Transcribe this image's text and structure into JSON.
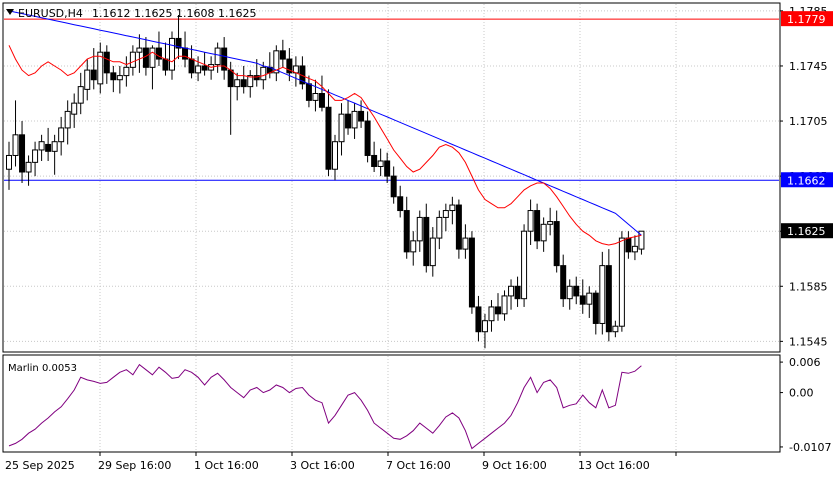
{
  "header": {
    "symbol": "EURUSD,H4",
    "ohlc": "1.1612 1.1625 1.1608 1.1625"
  },
  "chart_data": [
    {
      "type": "candlestick",
      "ylim": [
        1.1538,
        1.179
      ],
      "y_ticks": [
        "1.1785",
        "1.1745",
        "1.1705",
        "1.1665",
        "1.1625",
        "1.1585",
        "1.1545"
      ],
      "x_labels": [
        "25 Sep 2025",
        "29 Sep 16:00",
        "1 Oct 16:00",
        "3 Oct 16:00",
        "7 Oct 16:00",
        "9 Oct 16:00",
        "13 Oct 16:00"
      ],
      "hlines": [
        {
          "value": 1.1779,
          "label": "1.1779",
          "color": "#ff0000"
        },
        {
          "value": 1.1662,
          "label": "1.1662",
          "color": "#0000ff"
        },
        {
          "value": 1.1625,
          "label": "1.1625",
          "color": "#000000"
        }
      ],
      "candles": [
        [
          1.167,
          1.169,
          1.1655,
          1.168
        ],
        [
          1.168,
          1.172,
          1.1672,
          1.1695
        ],
        [
          1.1695,
          1.1705,
          1.166,
          1.1668
        ],
        [
          1.1668,
          1.168,
          1.1658,
          1.1675
        ],
        [
          1.1675,
          1.169,
          1.1665,
          1.1684
        ],
        [
          1.1684,
          1.1695,
          1.1676,
          1.169
        ],
        [
          1.1688,
          1.17,
          1.1676,
          1.1683
        ],
        [
          1.1683,
          1.1695,
          1.1666,
          1.169
        ],
        [
          1.169,
          1.1708,
          1.168,
          1.17
        ],
        [
          1.17,
          1.172,
          1.1688,
          1.1712
        ],
        [
          1.171,
          1.1725,
          1.17,
          1.1718
        ],
        [
          1.1718,
          1.174,
          1.171,
          1.173
        ],
        [
          1.1728,
          1.175,
          1.172,
          1.1742
        ],
        [
          1.1742,
          1.1758,
          1.1728,
          1.1735
        ],
        [
          1.1732,
          1.1762,
          1.1725,
          1.1755
        ],
        [
          1.1755,
          1.176,
          1.1732,
          1.174
        ],
        [
          1.174,
          1.1745,
          1.1726,
          1.1735
        ],
        [
          1.1735,
          1.1745,
          1.1725,
          1.1738
        ],
        [
          1.1738,
          1.1752,
          1.173,
          1.1744
        ],
        [
          1.1744,
          1.176,
          1.1738,
          1.1755
        ],
        [
          1.1755,
          1.1768,
          1.174,
          1.1758
        ],
        [
          1.1758,
          1.1766,
          1.1738,
          1.1744
        ],
        [
          1.1744,
          1.176,
          1.1728,
          1.1758
        ],
        [
          1.1758,
          1.177,
          1.1745,
          1.175
        ],
        [
          1.175,
          1.1762,
          1.1738,
          1.1742
        ],
        [
          1.1742,
          1.177,
          1.1735,
          1.1765
        ],
        [
          1.1765,
          1.1782,
          1.175,
          1.1758
        ],
        [
          1.1758,
          1.177,
          1.1744,
          1.175
        ],
        [
          1.175,
          1.176,
          1.1736,
          1.174
        ],
        [
          1.174,
          1.1752,
          1.1734,
          1.1745
        ],
        [
          1.1745,
          1.1755,
          1.1738,
          1.1742
        ],
        [
          1.1742,
          1.1752,
          1.1735,
          1.1746
        ],
        [
          1.1746,
          1.1762,
          1.174,
          1.1758
        ],
        [
          1.1758,
          1.1766,
          1.1735,
          1.1742
        ],
        [
          1.1742,
          1.1748,
          1.1695,
          1.173
        ],
        [
          1.173,
          1.174,
          1.172,
          1.1735
        ],
        [
          1.1735,
          1.1745,
          1.1725,
          1.173
        ],
        [
          1.173,
          1.1742,
          1.1722,
          1.1738
        ],
        [
          1.1738,
          1.175,
          1.173,
          1.1735
        ],
        [
          1.1735,
          1.1748,
          1.1728,
          1.1744
        ],
        [
          1.1744,
          1.1755,
          1.1736,
          1.174
        ],
        [
          1.174,
          1.176,
          1.1734,
          1.1756
        ],
        [
          1.1756,
          1.1764,
          1.1744,
          1.175
        ],
        [
          1.175,
          1.1758,
          1.1734,
          1.174
        ],
        [
          1.174,
          1.1752,
          1.173,
          1.1745
        ],
        [
          1.1745,
          1.1752,
          1.1728,
          1.1732
        ],
        [
          1.1732,
          1.1738,
          1.1715,
          1.172
        ],
        [
          1.172,
          1.1735,
          1.1712,
          1.1725
        ],
        [
          1.1725,
          1.1738,
          1.1712,
          1.1715
        ],
        [
          1.1715,
          1.1728,
          1.1665,
          1.167
        ],
        [
          1.167,
          1.1695,
          1.1662,
          1.169
        ],
        [
          1.169,
          1.1718,
          1.168,
          1.171
        ],
        [
          1.171,
          1.172,
          1.1695,
          1.17
        ],
        [
          1.17,
          1.1718,
          1.1692,
          1.1712
        ],
        [
          1.1712,
          1.172,
          1.17,
          1.1705
        ],
        [
          1.1705,
          1.1712,
          1.1675,
          1.168
        ],
        [
          1.168,
          1.169,
          1.1668,
          1.1672
        ],
        [
          1.1672,
          1.1685,
          1.1665,
          1.1676
        ],
        [
          1.1676,
          1.1682,
          1.166,
          1.1665
        ],
        [
          1.1665,
          1.1672,
          1.1645,
          1.165
        ],
        [
          1.165,
          1.1658,
          1.1635,
          1.164
        ],
        [
          1.164,
          1.165,
          1.1605,
          1.161
        ],
        [
          1.161,
          1.1625,
          1.16,
          1.1618
        ],
        [
          1.1618,
          1.164,
          1.161,
          1.1635
        ],
        [
          1.1635,
          1.1645,
          1.1595,
          1.16
        ],
        [
          1.16,
          1.1628,
          1.1592,
          1.162
        ],
        [
          1.162,
          1.164,
          1.1612,
          1.1635
        ],
        [
          1.1635,
          1.1645,
          1.1625,
          1.164
        ],
        [
          1.164,
          1.165,
          1.163,
          1.1644
        ],
        [
          1.1644,
          1.1648,
          1.1605,
          1.1612
        ],
        [
          1.1612,
          1.163,
          1.1605,
          1.162
        ],
        [
          1.162,
          1.1625,
          1.1565,
          1.157
        ],
        [
          1.157,
          1.1578,
          1.1545,
          1.1552
        ],
        [
          1.1552,
          1.1565,
          1.154,
          1.156
        ],
        [
          1.156,
          1.1575,
          1.1552,
          1.157
        ],
        [
          1.157,
          1.158,
          1.156,
          1.1565
        ],
        [
          1.1565,
          1.1582,
          1.156,
          1.1578
        ],
        [
          1.1578,
          1.159,
          1.1568,
          1.1585
        ],
        [
          1.1585,
          1.1592,
          1.157,
          1.1576
        ],
        [
          1.1576,
          1.163,
          1.157,
          1.1625
        ],
        [
          1.1625,
          1.1648,
          1.1615,
          1.164
        ],
        [
          1.164,
          1.1645,
          1.1612,
          1.1618
        ],
        [
          1.1618,
          1.1635,
          1.161,
          1.163
        ],
        [
          1.163,
          1.1642,
          1.1622,
          1.1632
        ],
        [
          1.1632,
          1.164,
          1.1595,
          1.16
        ],
        [
          1.16,
          1.1608,
          1.157,
          1.1576
        ],
        [
          1.1576,
          1.159,
          1.1568,
          1.1585
        ],
        [
          1.1585,
          1.1592,
          1.1572,
          1.1578
        ],
        [
          1.1578,
          1.159,
          1.1565,
          1.1572
        ],
        [
          1.1572,
          1.1585,
          1.1562,
          1.158
        ],
        [
          1.158,
          1.1582,
          1.155,
          1.1558
        ],
        [
          1.1558,
          1.161,
          1.155,
          1.16
        ],
        [
          1.16,
          1.1612,
          1.1545,
          1.1552
        ],
        [
          1.1552,
          1.156,
          1.1548,
          1.1556
        ],
        [
          1.1556,
          1.1625,
          1.1552,
          1.162
        ],
        [
          1.162,
          1.1625,
          1.1605,
          1.161
        ],
        [
          1.161,
          1.1622,
          1.1604,
          1.1614
        ],
        [
          1.1612,
          1.1625,
          1.1608,
          1.1625
        ]
      ],
      "ma_fast": [
        1.176,
        1.175,
        1.1742,
        1.1738,
        1.174,
        1.1745,
        1.1748,
        1.1745,
        1.1742,
        1.1738,
        1.174,
        1.1745,
        1.175,
        1.1752,
        1.1752,
        1.175,
        1.1748,
        1.1748,
        1.1746,
        1.1748,
        1.175,
        1.1752,
        1.1755,
        1.1752,
        1.175,
        1.1748,
        1.1752,
        1.1752,
        1.175,
        1.1748,
        1.1746,
        1.1744,
        1.1745,
        1.1745,
        1.1742,
        1.1738,
        1.1738,
        1.1737,
        1.1737,
        1.1738,
        1.174,
        1.1742,
        1.1744,
        1.1742,
        1.174,
        1.1738,
        1.1736,
        1.1734,
        1.173,
        1.1725,
        1.172,
        1.172,
        1.1722,
        1.1725,
        1.1722,
        1.1715,
        1.1708,
        1.17,
        1.1692,
        1.1684,
        1.1678,
        1.1672,
        1.1668,
        1.167,
        1.1675,
        1.168,
        1.1686,
        1.1688,
        1.1686,
        1.1682,
        1.1675,
        1.1665,
        1.1655,
        1.1648,
        1.1645,
        1.1642,
        1.1642,
        1.1645,
        1.165,
        1.1655,
        1.1658,
        1.166,
        1.166,
        1.1656,
        1.165,
        1.1643,
        1.1636,
        1.163,
        1.1625,
        1.1622,
        1.1618,
        1.1616,
        1.1615,
        1.1616,
        1.1618,
        1.162,
        1.1621,
        1.1622
      ],
      "ma_slow": [
        1.1785,
        1.1784,
        1.1783,
        1.1782,
        1.1781,
        1.178,
        1.1779,
        1.1778,
        1.1777,
        1.1776,
        1.1775,
        1.1774,
        1.1773,
        1.1772,
        1.1771,
        1.177,
        1.1769,
        1.1768,
        1.1767,
        1.1766,
        1.1765,
        1.1764,
        1.1763,
        1.1762,
        1.1761,
        1.176,
        1.1759,
        1.1758,
        1.1757,
        1.1756,
        1.1755,
        1.1754,
        1.1753,
        1.1752,
        1.1751,
        1.175,
        1.1749,
        1.1748,
        1.1747,
        1.1745,
        1.1744,
        1.1742,
        1.174,
        1.1738,
        1.1736,
        1.1734,
        1.1732,
        1.173,
        1.1728,
        1.1726,
        1.1724,
        1.1722,
        1.172,
        1.1718,
        1.1716,
        1.1714,
        1.1712,
        1.171,
        1.1708,
        1.1706,
        1.1704,
        1.1702,
        1.17,
        1.1698,
        1.1696,
        1.1694,
        1.1692,
        1.169,
        1.1688,
        1.1686,
        1.1684,
        1.1682,
        1.168,
        1.1678,
        1.1676,
        1.1674,
        1.1672,
        1.167,
        1.1668,
        1.1666,
        1.1664,
        1.1662,
        1.166,
        1.1658,
        1.1656,
        1.1654,
        1.1652,
        1.165,
        1.1648,
        1.1646,
        1.1644,
        1.1642,
        1.164,
        1.1638,
        1.1634,
        1.163,
        1.1626,
        1.1622
      ]
    },
    {
      "type": "line",
      "indicator_label": "Marlin 0.0053",
      "ylim": [
        -0.0115,
        0.0072
      ],
      "y_ticks": [
        "0.006",
        "0.00",
        "-0.0107"
      ],
      "values": [
        -0.0105,
        -0.01,
        -0.0092,
        -0.008,
        -0.0072,
        -0.006,
        -0.005,
        -0.0038,
        -0.0028,
        -0.0012,
        0.0005,
        0.003,
        0.0025,
        0.0022,
        0.0018,
        0.002,
        0.003,
        0.004,
        0.0045,
        0.0035,
        0.0055,
        0.0045,
        0.0035,
        0.005,
        0.004,
        0.0028,
        0.003,
        0.0045,
        0.004,
        0.003,
        0.0015,
        0.003,
        0.0038,
        0.0025,
        0.001,
        0.0,
        -0.001,
        0.0005,
        0.001,
        0.0,
        0.0005,
        0.0015,
        0.001,
        0.0,
        0.0008,
        0.001,
        -0.0005,
        -0.0015,
        -0.002,
        -0.006,
        -0.0045,
        -0.0025,
        -0.0005,
        0.0,
        -0.0015,
        -0.0035,
        -0.006,
        -0.007,
        -0.008,
        -0.009,
        -0.0092,
        -0.0085,
        -0.0075,
        -0.006,
        -0.007,
        -0.008,
        -0.0065,
        -0.0048,
        -0.004,
        -0.005,
        -0.0075,
        -0.011,
        -0.01,
        -0.009,
        -0.008,
        -0.007,
        -0.006,
        -0.0045,
        -0.002,
        0.001,
        0.003,
        0.0,
        0.002,
        0.0025,
        0.001,
        -0.003,
        -0.0025,
        -0.0022,
        -0.0005,
        -0.002,
        -0.003,
        0.0005,
        -0.003,
        -0.0025,
        0.004,
        0.0038,
        0.0042,
        0.0053
      ]
    }
  ]
}
